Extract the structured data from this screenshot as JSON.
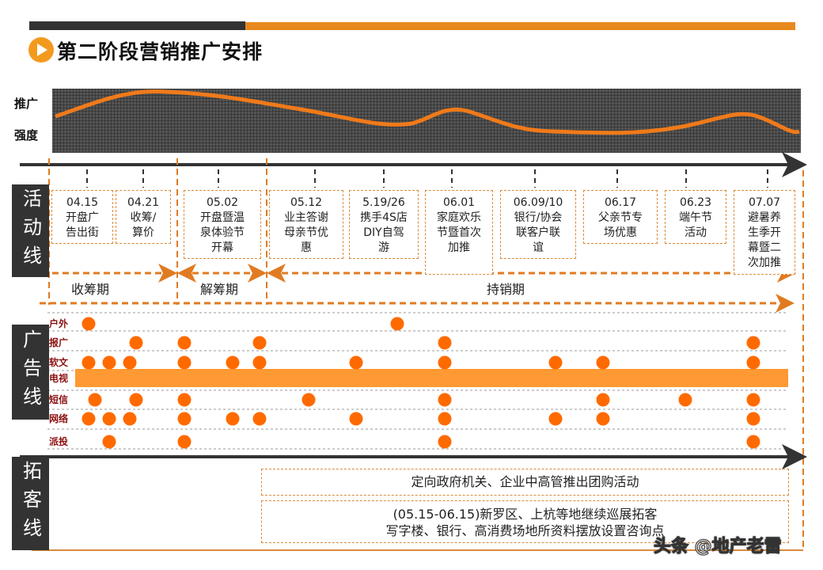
{
  "title": "第二阶段营销推广安排",
  "colors": {
    "accent": "#f08a24",
    "dark": "#333333",
    "tv_bar": "#ff9933",
    "dot": "#ff6a00",
    "row_label": "#8b1010"
  },
  "intensity": {
    "label_top": "推广",
    "label_bottom": "强度"
  },
  "lanes": {
    "activity": "活动线",
    "ads": "广告线",
    "expansion": "拓客线"
  },
  "activities": [
    {
      "date": "04.15",
      "text": "开盘广\n告出街"
    },
    {
      "date": "04.21",
      "text": "收筹/\n算价"
    },
    {
      "date": "05.02",
      "text": "开盘暨温\n泉体验节\n开幕"
    },
    {
      "date": "05.12",
      "text": "业主答谢\n母亲节优\n惠"
    },
    {
      "date": "5.19/26",
      "text": "携手4S店\nDIY自驾\n游"
    },
    {
      "date": "06.01",
      "text": "家庭欢乐\n节暨首次\n加推"
    },
    {
      "date": "06.09/10",
      "text": "银行/协会\n联客户联\n谊"
    },
    {
      "date": "06.17",
      "text": "父亲节专\n场优惠"
    },
    {
      "date": "06.23",
      "text": "端午节\n活动"
    },
    {
      "date": "07.07",
      "text": "避暑养\n生季开\n幕暨二\n次加推"
    }
  ],
  "phases": [
    "收筹期",
    "解筹期",
    "持销期"
  ],
  "ad_rows": [
    {
      "label": "户外",
      "slots": [
        0,
        8
      ]
    },
    {
      "label": "报广",
      "slots": [
        15,
        3,
        5,
        9,
        13
      ]
    },
    {
      "label": "软文",
      "slots": [
        0,
        1,
        2,
        3,
        4,
        5,
        7,
        9,
        10,
        11,
        13
      ]
    },
    {
      "label": "电视",
      "continuous": true
    },
    {
      "label": "短信",
      "slots": [
        14,
        15,
        3,
        6,
        9,
        11,
        12,
        13
      ]
    },
    {
      "label": "网络",
      "slots": [
        0,
        1,
        2,
        3,
        4,
        5,
        7,
        9,
        10,
        11,
        13
      ]
    },
    {
      "label": "派投",
      "slots": [
        1,
        3,
        9,
        13
      ]
    }
  ],
  "expansion": {
    "item1": "定向政府机关、企业中高管推出团购活动",
    "item2_line1": "(05.15-06.15)新罗区、上杭等地继续巡展拓客",
    "item2_line2": "写字楼、银行、高消费场地所资料摆放设置咨询点"
  },
  "watermark": "头条 @地产老雷"
}
